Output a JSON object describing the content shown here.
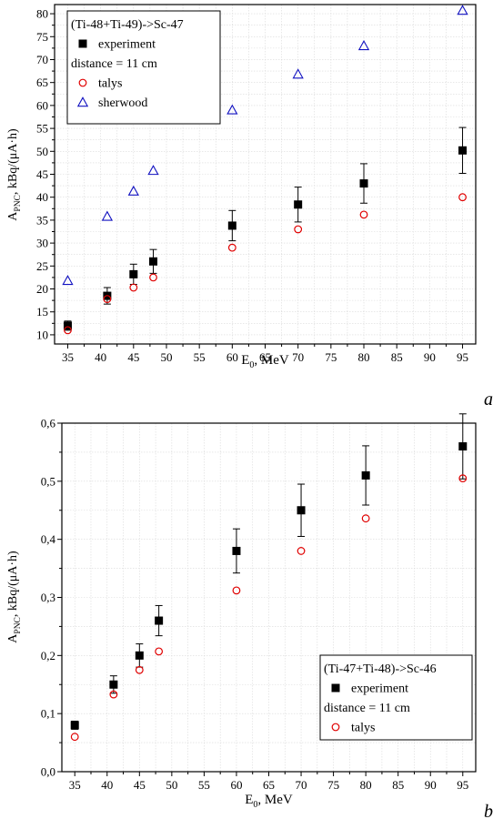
{
  "panels": [
    {
      "letter": "a",
      "legend": {
        "title": "(Ti-48+Ti-49)->Sc-47",
        "note": "distance = 11 cm",
        "entries": [
          "experiment",
          "talys",
          "sherwood"
        ]
      },
      "ylabel": {
        "main": "A",
        "sub": "PNC",
        "rest": ", kBq/(μA·h)"
      },
      "xlabel": {
        "main": "E",
        "sub": "0",
        "rest": ", MeV"
      },
      "colors": {
        "experiment": "#000000",
        "talys": "#e00000",
        "sherwood": "#1010c0"
      },
      "chart_data": {
        "type": "scatter",
        "xlim": [
          33,
          97
        ],
        "ylim": [
          8,
          82
        ],
        "x_ticks": [
          35,
          40,
          45,
          50,
          55,
          60,
          65,
          70,
          75,
          80,
          85,
          90,
          95
        ],
        "y_ticks": [
          10,
          15,
          20,
          25,
          30,
          35,
          40,
          45,
          50,
          55,
          60,
          65,
          70,
          75,
          80
        ],
        "y_tick_labels": [
          "10",
          "15",
          "20",
          "25",
          "30",
          "35",
          "40",
          "45",
          "50",
          "55",
          "60",
          "65",
          "70",
          "75",
          "80"
        ],
        "grid": true,
        "legend_position": "top-left",
        "series": [
          {
            "name": "experiment",
            "marker": "square",
            "x": [
              35,
              41,
              45,
              48,
              60,
              70,
              80,
              95
            ],
            "y": [
              12.0,
              18.5,
              23.2,
              26.0,
              33.8,
              38.4,
              43.0,
              50.2
            ],
            "err": [
              1.0,
              1.8,
              2.2,
              2.6,
              3.3,
              3.8,
              4.3,
              5.0
            ]
          },
          {
            "name": "talys",
            "marker": "circle",
            "x": [
              35,
              41,
              45,
              48,
              60,
              70,
              80,
              95
            ],
            "y": [
              11.0,
              17.8,
              20.3,
              22.5,
              29.0,
              33.0,
              36.2,
              40.0
            ]
          },
          {
            "name": "sherwood",
            "marker": "triangle",
            "x": [
              35,
              41,
              45,
              48,
              60,
              70,
              80,
              95
            ],
            "y": [
              21.8,
              35.8,
              41.3,
              45.8,
              59.0,
              66.8,
              73.0,
              80.7
            ]
          }
        ]
      }
    },
    {
      "letter": "b",
      "legend": {
        "title": "(Ti-47+Ti-48)->Sc-46",
        "note": "distance = 11 cm",
        "entries": [
          "experiment",
          "talys"
        ]
      },
      "ylabel": {
        "main": "A",
        "sub": "PNC",
        "rest": ", kBq/(μA·h)"
      },
      "xlabel": {
        "main": "E",
        "sub": "0",
        "rest": ", MeV"
      },
      "colors": {
        "experiment": "#000000",
        "talys": "#e00000"
      },
      "chart_data": {
        "type": "scatter",
        "xlim": [
          33,
          97
        ],
        "ylim": [
          0,
          0.6
        ],
        "x_ticks": [
          35,
          40,
          45,
          50,
          55,
          60,
          65,
          70,
          75,
          80,
          85,
          90,
          95
        ],
        "y_ticks": [
          0,
          0.1,
          0.2,
          0.3,
          0.4,
          0.5,
          0.6
        ],
        "y_tick_labels": [
          "0,0",
          "0,1",
          "0,2",
          "0,3",
          "0,4",
          "0,5",
          "0,6"
        ],
        "grid": true,
        "legend_position": "bottom-right",
        "series": [
          {
            "name": "experiment",
            "marker": "square",
            "x": [
              35,
              41,
              45,
              48,
              60,
              70,
              80,
              95
            ],
            "y": [
              0.08,
              0.15,
              0.2,
              0.26,
              0.38,
              0.45,
              0.51,
              0.56
            ],
            "err": [
              0.007,
              0.015,
              0.02,
              0.026,
              0.038,
              0.045,
              0.051,
              0.056
            ]
          },
          {
            "name": "talys",
            "marker": "circle",
            "x": [
              35,
              41,
              45,
              48,
              60,
              70,
              80,
              95
            ],
            "y": [
              0.06,
              0.133,
              0.175,
              0.207,
              0.312,
              0.38,
              0.436,
              0.505
            ]
          }
        ]
      }
    }
  ]
}
